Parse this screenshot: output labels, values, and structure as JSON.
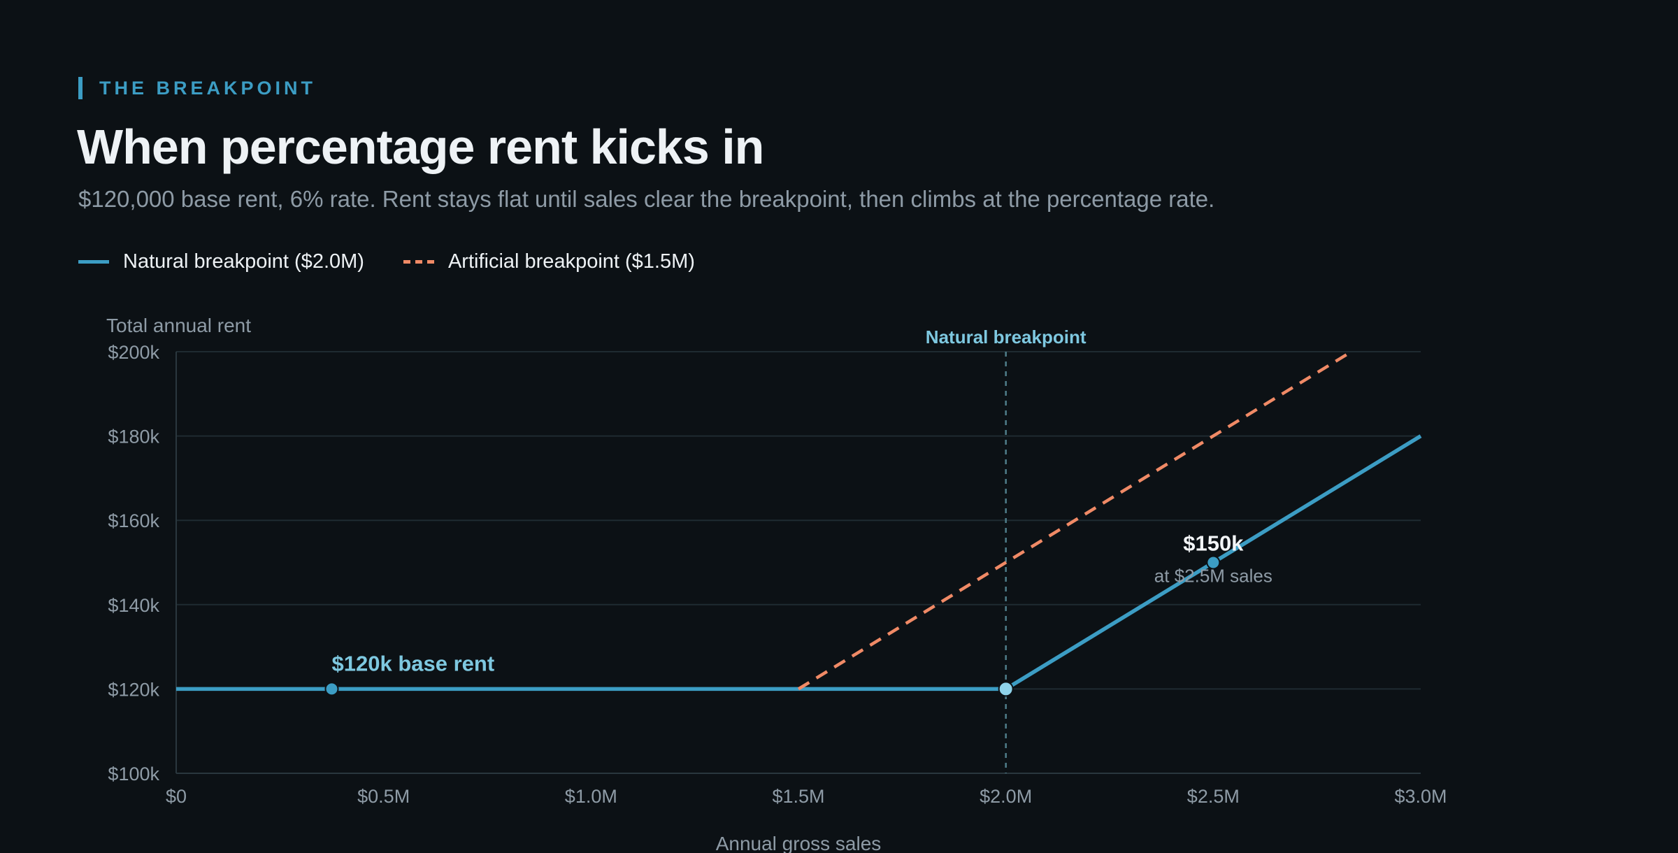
{
  "header": {
    "eyebrow": "THE BREAKPOINT",
    "title": "When percentage rent kicks in",
    "subtitle": "$120,000 base rent, 6% rate. Rent stays flat until sales clear the breakpoint, then climbs at the percentage rate."
  },
  "legend": [
    {
      "label": "Natural breakpoint ($2.0M)",
      "style": "solid",
      "color": "#3c9dc4"
    },
    {
      "label": "Artificial breakpoint ($1.5M)",
      "style": "dashed",
      "color": "#f08a66"
    }
  ],
  "colors": {
    "natural": "#3c9dc4",
    "artificial": "#f08a66",
    "annotation": "#7ec8e0",
    "axis_text": "#8e9ba6",
    "grid": "#1f2b31"
  },
  "chart_data": {
    "type": "line",
    "xlabel": "Annual gross sales",
    "ylabel": "Total annual rent",
    "xlim": [
      0,
      3.0
    ],
    "ylim": [
      100,
      200
    ],
    "x_ticks": [
      0,
      0.5,
      1.0,
      1.5,
      2.0,
      2.5,
      3.0
    ],
    "x_tick_labels": [
      "$0",
      "$0.5M",
      "$1.0M",
      "$1.5M",
      "$2.0M",
      "$2.5M",
      "$3.0M"
    ],
    "y_ticks": [
      100,
      120,
      140,
      160,
      180,
      200
    ],
    "y_tick_labels": [
      "$100k",
      "$120k",
      "$140k",
      "$160k",
      "$180k",
      "$200k"
    ],
    "grid": true,
    "series": [
      {
        "name": "Natural breakpoint ($2.0M)",
        "style": "solid",
        "x": [
          0,
          2.0,
          3.0
        ],
        "y": [
          120,
          120,
          180
        ]
      },
      {
        "name": "Artificial breakpoint ($1.5M)",
        "style": "dashed",
        "x": [
          1.5,
          2.833
        ],
        "y": [
          120,
          200
        ]
      }
    ],
    "reference_line": {
      "x": 2.0,
      "label": "Natural breakpoint"
    },
    "points": [
      {
        "x": 0.375,
        "y": 120
      },
      {
        "x": 2.0,
        "y": 120
      },
      {
        "x": 2.5,
        "y": 150
      }
    ],
    "annotations": [
      {
        "x": 0.375,
        "y": 120,
        "label": "$120k base rent"
      },
      {
        "x": 2.5,
        "y": 150,
        "label": "$150k",
        "sublabel": "at $2.5M sales"
      }
    ]
  }
}
